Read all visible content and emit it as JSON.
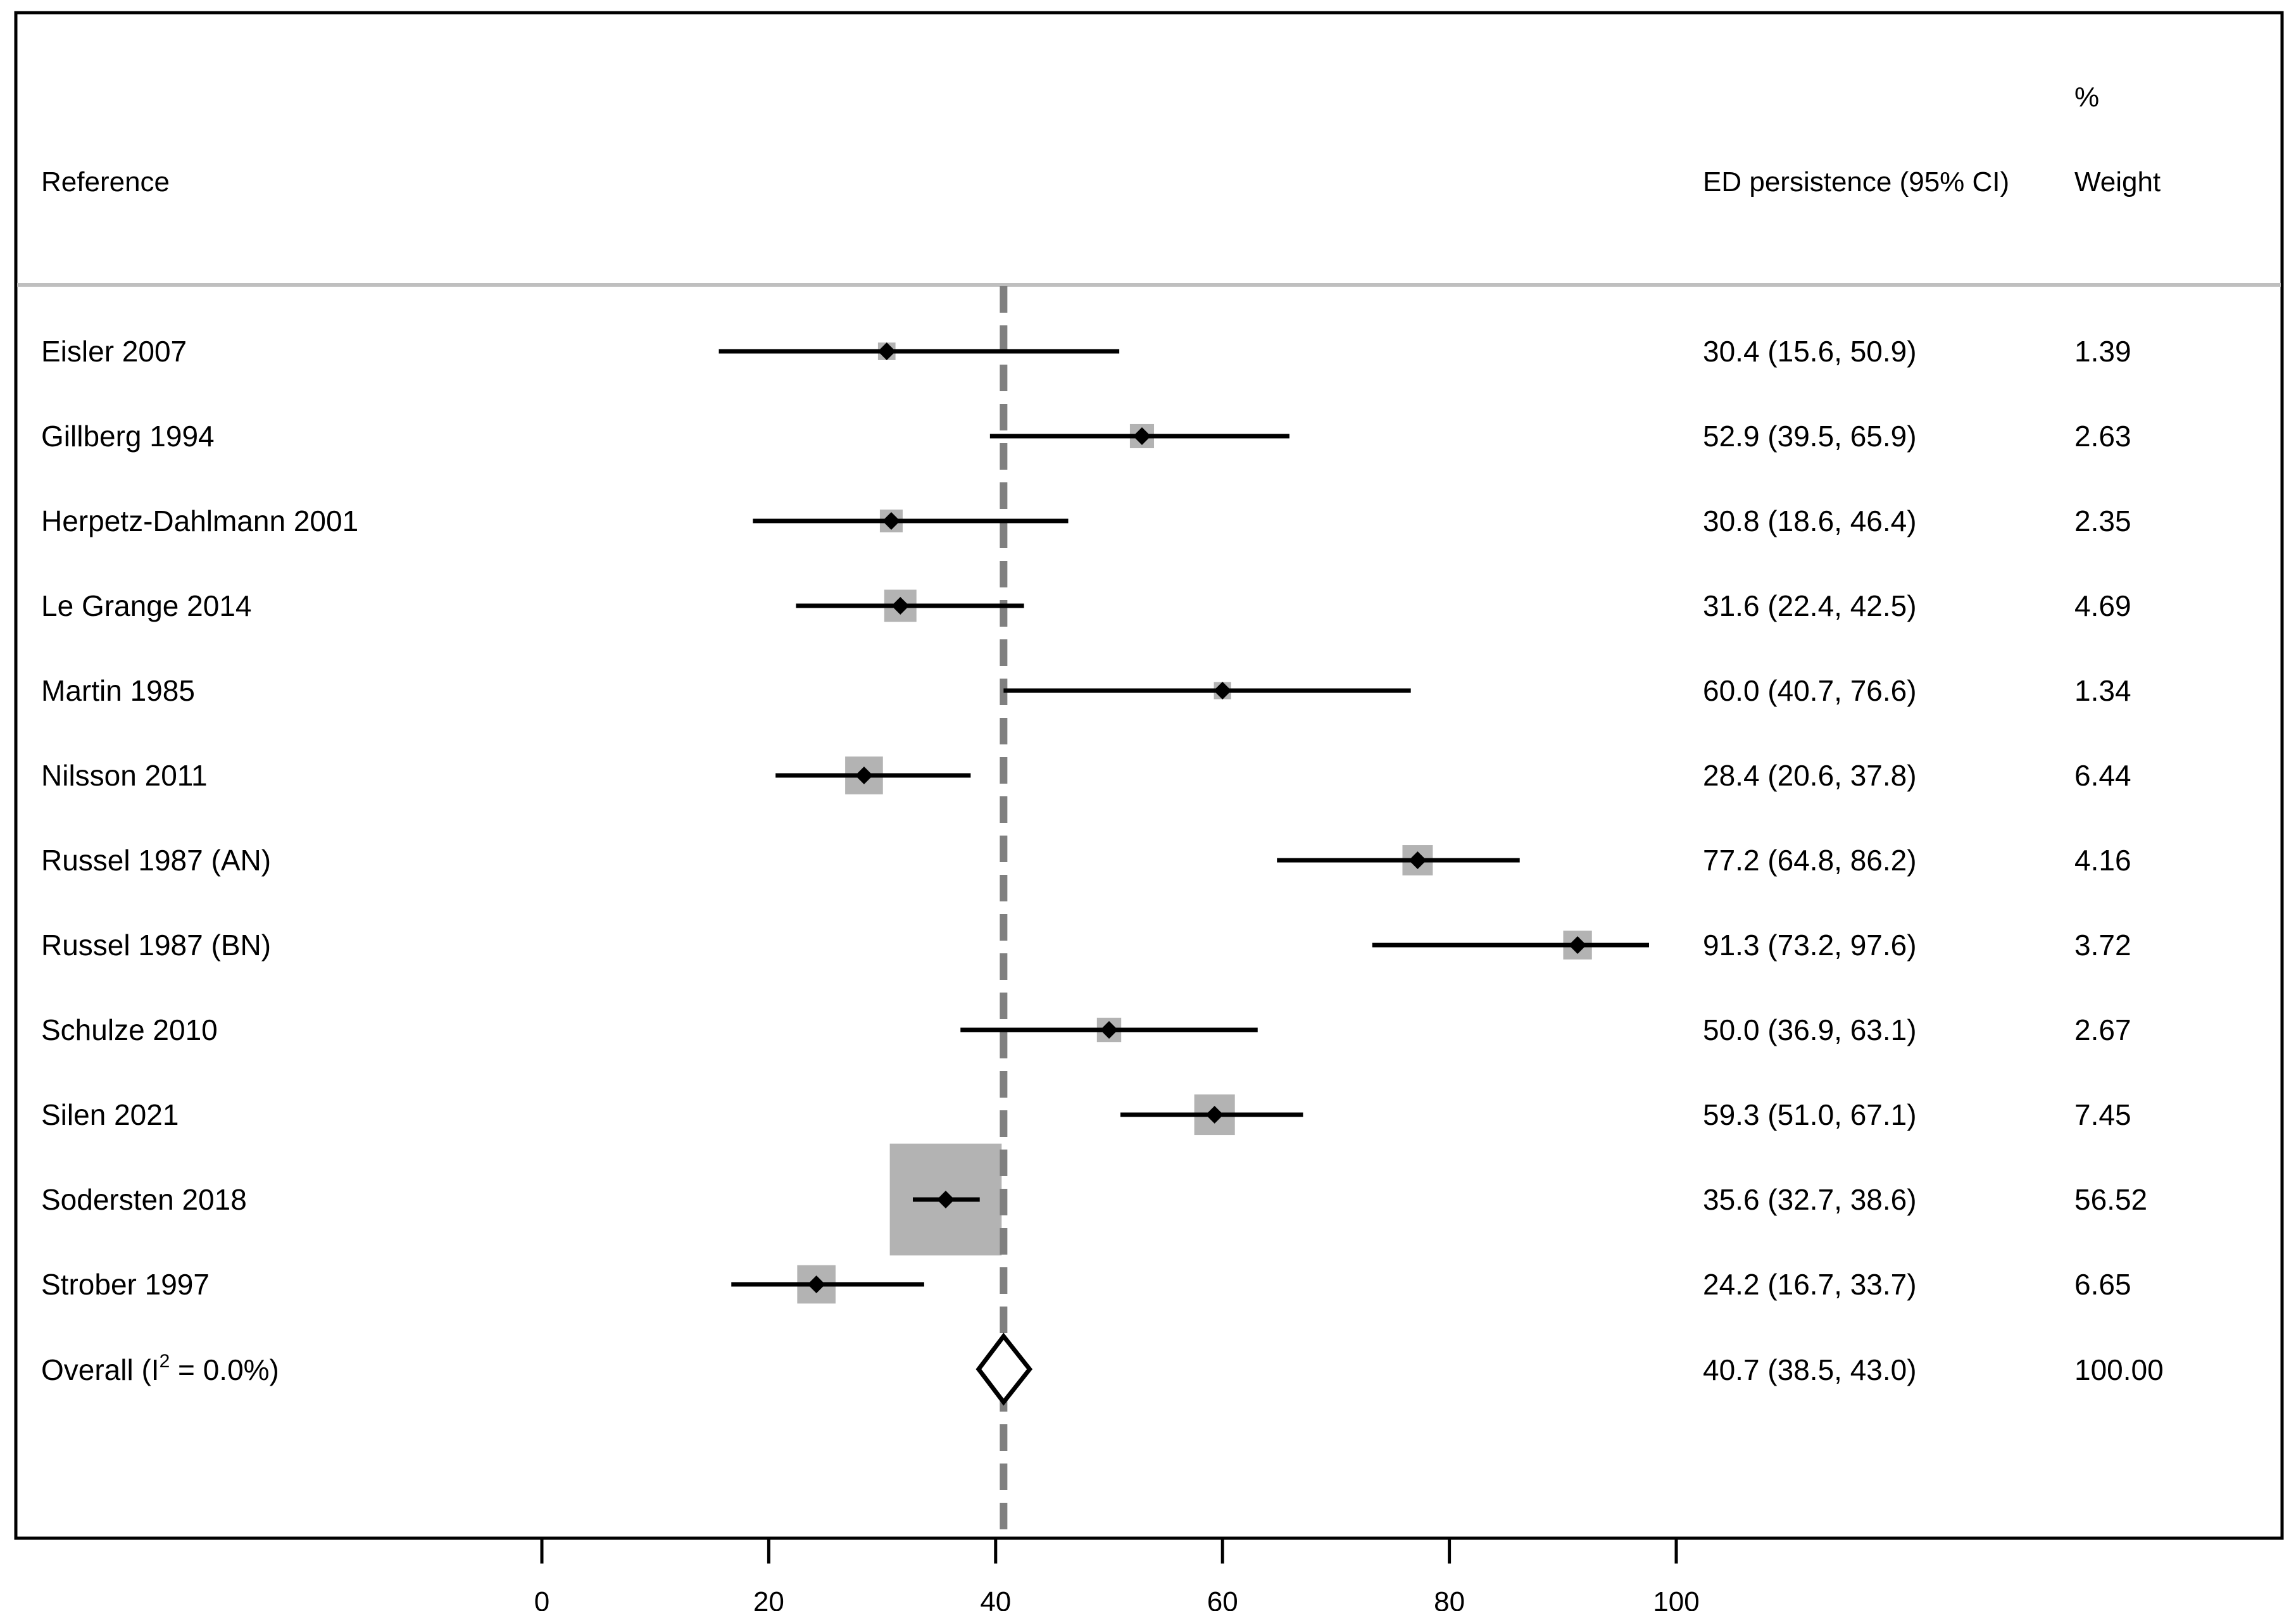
{
  "colors": {
    "frame": "#000000",
    "separator": "#bfbfbf",
    "weight_box": "#b3b3b3",
    "ci_line": "#000000",
    "overall_line": "#808080",
    "point": "#000000",
    "background": "#ffffff"
  },
  "headers": {
    "reference": "Reference",
    "effect": "ED persistence (95% CI)",
    "weight_top": "%",
    "weight_bottom": "Weight"
  },
  "overall": {
    "label_prefix": "Overall  (I",
    "label_sup": "2",
    "label_suffix": " = 0.0%)",
    "ci_text": "40.7 (38.5, 43.0)",
    "weight_text": "100.00"
  },
  "chart_data": {
    "type": "forest",
    "title": "",
    "xlabel": "",
    "ylabel": "",
    "xlim": [
      0,
      100
    ],
    "x_ticks": [
      0,
      20,
      40,
      60,
      80,
      100
    ],
    "x_tick_labels": [
      "0",
      "20",
      "40",
      "60",
      "80",
      "100"
    ],
    "grid": false,
    "studies": [
      {
        "label": "Eisler 2007",
        "estimate": 30.4,
        "lower": 15.6,
        "upper": 50.9,
        "ci_text": "30.4 (15.6, 50.9)",
        "weight": 1.39,
        "weight_text": "1.39"
      },
      {
        "label": "Gillberg 1994",
        "estimate": 52.9,
        "lower": 39.5,
        "upper": 65.9,
        "ci_text": "52.9 (39.5, 65.9)",
        "weight": 2.63,
        "weight_text": "2.63"
      },
      {
        "label": "Herpetz-Dahlmann 2001",
        "estimate": 30.8,
        "lower": 18.6,
        "upper": 46.4,
        "ci_text": "30.8 (18.6, 46.4)",
        "weight": 2.35,
        "weight_text": "2.35"
      },
      {
        "label": "Le Grange 2014",
        "estimate": 31.6,
        "lower": 22.4,
        "upper": 42.5,
        "ci_text": "31.6 (22.4, 42.5)",
        "weight": 4.69,
        "weight_text": "4.69"
      },
      {
        "label": "Martin 1985",
        "estimate": 60.0,
        "lower": 40.7,
        "upper": 76.6,
        "ci_text": "60.0 (40.7, 76.6)",
        "weight": 1.34,
        "weight_text": "1.34"
      },
      {
        "label": "Nilsson 2011",
        "estimate": 28.4,
        "lower": 20.6,
        "upper": 37.8,
        "ci_text": "28.4 (20.6, 37.8)",
        "weight": 6.44,
        "weight_text": "6.44"
      },
      {
        "label": "Russel 1987 (AN)",
        "estimate": 77.2,
        "lower": 64.8,
        "upper": 86.2,
        "ci_text": "77.2 (64.8, 86.2)",
        "weight": 4.16,
        "weight_text": "4.16"
      },
      {
        "label": "Russel 1987 (BN)",
        "estimate": 91.3,
        "lower": 73.2,
        "upper": 97.6,
        "ci_text": "91.3 (73.2, 97.6)",
        "weight": 3.72,
        "weight_text": "3.72"
      },
      {
        "label": "Schulze 2010",
        "estimate": 50.0,
        "lower": 36.9,
        "upper": 63.1,
        "ci_text": "50.0 (36.9, 63.1)",
        "weight": 2.67,
        "weight_text": "2.67"
      },
      {
        "label": "Silen 2021",
        "estimate": 59.3,
        "lower": 51.0,
        "upper": 67.1,
        "ci_text": "59.3 (51.0, 67.1)",
        "weight": 7.45,
        "weight_text": "7.45"
      },
      {
        "label": "Sodersten 2018",
        "estimate": 35.6,
        "lower": 32.7,
        "upper": 38.6,
        "ci_text": "35.6 (32.7, 38.6)",
        "weight": 56.52,
        "weight_text": "56.52"
      },
      {
        "label": "Strober 1997",
        "estimate": 24.2,
        "lower": 16.7,
        "upper": 33.7,
        "ci_text": "24.2 (16.7, 33.7)",
        "weight": 6.65,
        "weight_text": "6.65"
      }
    ],
    "overall": {
      "estimate": 40.7,
      "lower": 38.5,
      "upper": 43.0,
      "i_squared": 0.0,
      "weight": 100.0
    }
  }
}
